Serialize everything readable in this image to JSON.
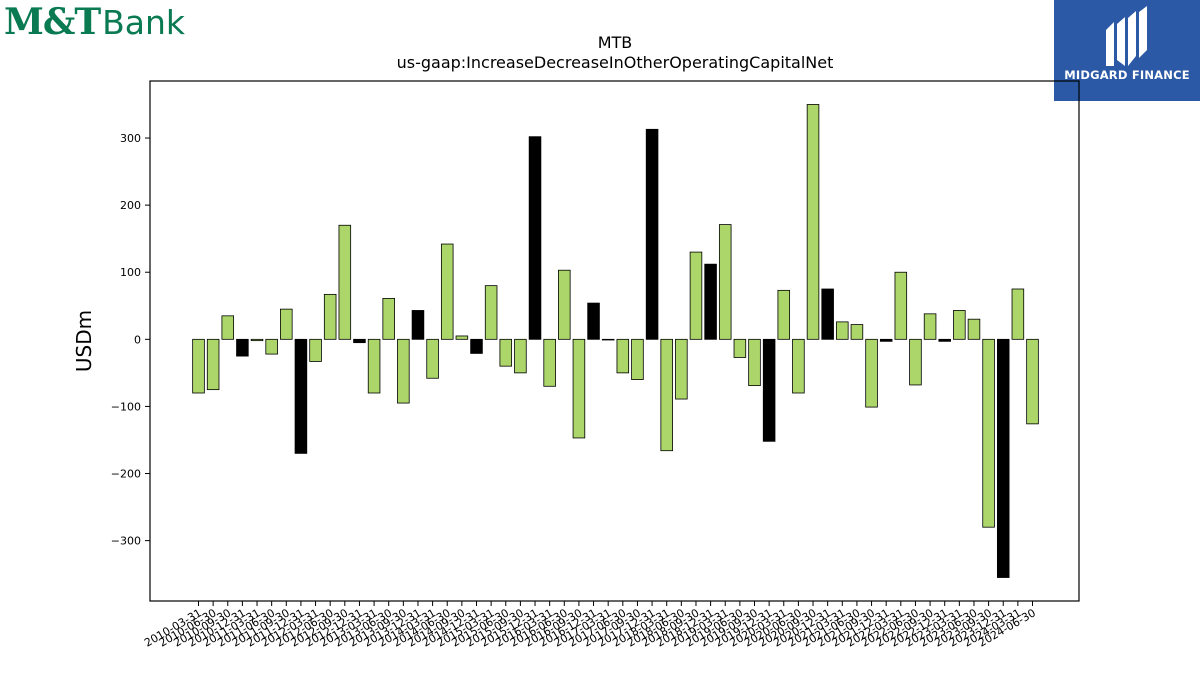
{
  "logos": {
    "left": {
      "brand": "M&T",
      "word": "Bank"
    },
    "right": {
      "brand": "MIDGARD FINANCE"
    }
  },
  "colors": {
    "positive": "#acd66a",
    "negative": "#000000",
    "bar_edge": "#000000"
  },
  "chart_data": {
    "type": "bar",
    "title": "MTB",
    "subtitle": "us-gaap:IncreaseDecreaseInOtherOperatingCapitalNet",
    "ylabel": "USDm",
    "xlabel": "",
    "ylim": [
      -390,
      385
    ],
    "yticks": [
      -300,
      -200,
      -100,
      0,
      100,
      200,
      300
    ],
    "ytick_labels": [
      "−300",
      "−200",
      "−100",
      "0",
      "100",
      "200",
      "300"
    ],
    "categories": [
      "2010-03-31",
      "2010-06-30",
      "2010-09-30",
      "2010-12-31",
      "2011-03-31",
      "2011-06-30",
      "2011-09-30",
      "2011-12-31",
      "2012-03-31",
      "2012-06-30",
      "2012-09-30",
      "2012-12-31",
      "2013-03-31",
      "2013-06-30",
      "2013-09-30",
      "2013-12-31",
      "2014-03-31",
      "2014-06-30",
      "2014-09-30",
      "2014-12-31",
      "2015-03-31",
      "2015-06-30",
      "2015-09-30",
      "2015-12-31",
      "2016-03-31",
      "2016-06-30",
      "2016-09-30",
      "2016-12-31",
      "2017-03-31",
      "2017-06-30",
      "2017-09-30",
      "2017-12-31",
      "2018-03-31",
      "2018-06-30",
      "2018-09-30",
      "2018-12-31",
      "2019-03-31",
      "2019-06-30",
      "2019-09-30",
      "2019-12-31",
      "2020-03-31",
      "2020-06-30",
      "2020-09-30",
      "2020-12-31",
      "2021-03-31",
      "2021-06-30",
      "2021-09-30",
      "2021-12-31",
      "2022-03-31",
      "2022-06-30",
      "2022-09-30",
      "2022-12-31",
      "2023-03-31",
      "2023-06-30",
      "2023-09-30",
      "2023-12-31",
      "2024-03-31",
      "2024-06-30"
    ],
    "values": [
      -80,
      -75,
      35,
      -25,
      -2,
      -22,
      45,
      -170,
      -33,
      67,
      170,
      -5,
      -80,
      61,
      -95,
      43,
      -58,
      142,
      5,
      -21,
      80,
      -40,
      -50,
      302,
      -70,
      103,
      -147,
      54,
      -1,
      -50,
      -60,
      313,
      -166,
      -89,
      130,
      112,
      171,
      -27,
      -69,
      -152,
      73,
      -80,
      350,
      75,
      26,
      22,
      -101,
      -3,
      100,
      -68,
      38,
      -3,
      43,
      30,
      -280,
      -355,
      75,
      -126
    ],
    "highlight": [
      false,
      false,
      false,
      true,
      false,
      false,
      false,
      true,
      false,
      false,
      false,
      true,
      false,
      false,
      false,
      true,
      false,
      false,
      false,
      true,
      false,
      false,
      false,
      true,
      false,
      false,
      false,
      true,
      false,
      false,
      false,
      true,
      false,
      false,
      false,
      true,
      false,
      false,
      false,
      true,
      false,
      false,
      false,
      true,
      false,
      false,
      false,
      true,
      false,
      false,
      false,
      true,
      false,
      false,
      false,
      true,
      false,
      false
    ],
    "grid": false,
    "legend": "none"
  }
}
